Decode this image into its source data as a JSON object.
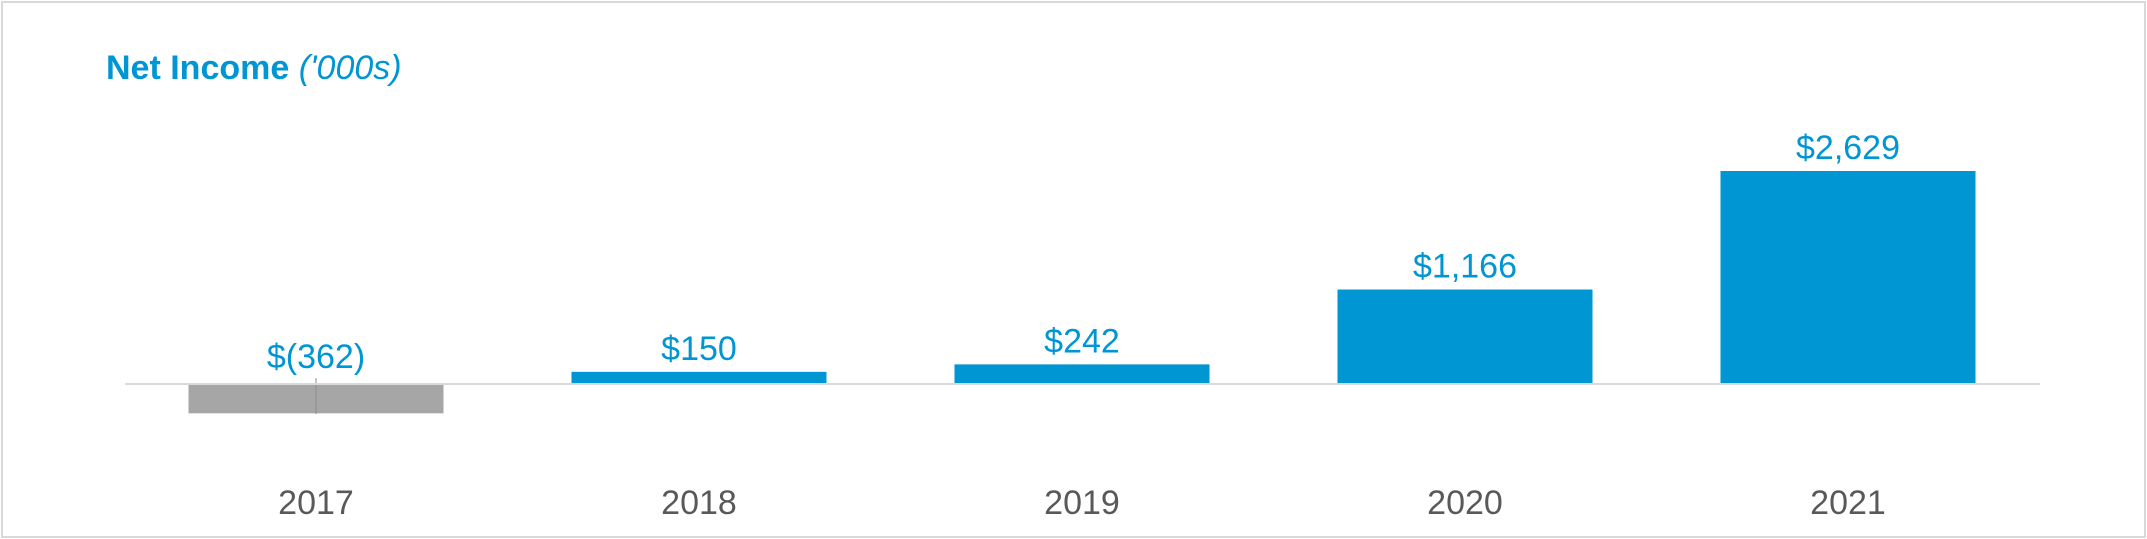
{
  "chart_data": {
    "type": "bar",
    "title": "Net Income",
    "title_unit": "('000s)",
    "categories": [
      "2017",
      "2018",
      "2019",
      "2020",
      "2021"
    ],
    "values": [
      -362,
      150,
      242,
      1166,
      2629
    ],
    "data_labels": [
      "$(362)",
      "$150",
      "$242",
      "$1,166",
      "$2,629"
    ],
    "xlabel": "",
    "ylabel": "",
    "ylim": [
      -362,
      2629
    ],
    "grid": false,
    "legend": "none",
    "colors": {
      "positive": "#0095d3",
      "negative": "#a6a6a6",
      "label": "#0095d3",
      "axis_label": "#595959",
      "axis_line": "#d9d9d9"
    }
  }
}
